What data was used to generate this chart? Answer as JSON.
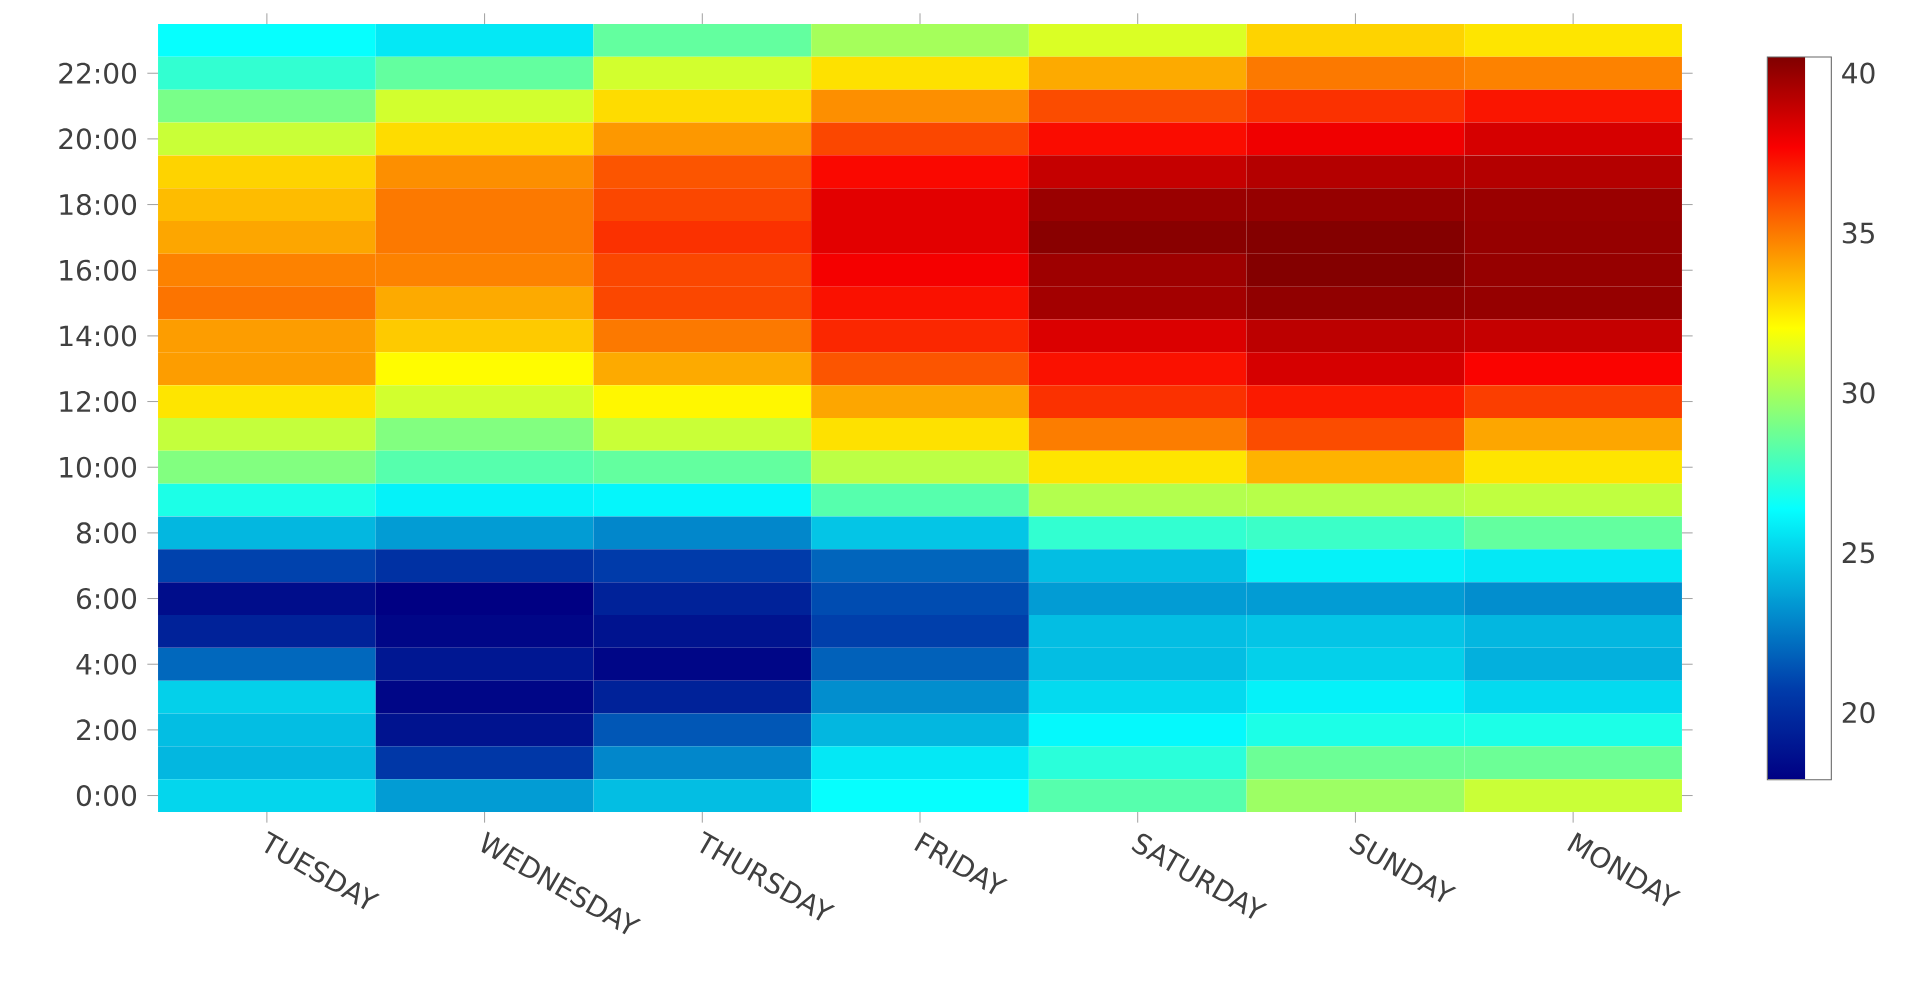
{
  "chart_data": {
    "type": "heatmap",
    "categories": [
      "TUESDAY",
      "WEDNESDAY",
      "THURSDAY",
      "FRIDAY",
      "SATURDAY",
      "SUNDAY",
      "MONDAY"
    ],
    "y_categories": [
      null,
      "22:00",
      null,
      "20:00",
      null,
      "18:00",
      null,
      "16:00",
      null,
      "14:00",
      null,
      "12:00",
      null,
      "10:00",
      null,
      "8:00",
      null,
      "6:00",
      null,
      "4:00",
      null,
      "2:00",
      null,
      "0:00"
    ],
    "cells": [
      [
        26.4,
        25.7,
        28.5,
        30,
        31.2,
        33,
        32.6
      ],
      [
        27.4,
        28.5,
        31,
        32.7,
        33.9,
        35,
        34.8
      ],
      [
        29,
        31,
        32.8,
        34.5,
        36,
        36.6,
        37.2
      ],
      [
        30.8,
        32.8,
        34.3,
        36.1,
        37.4,
        37.9,
        38.5
      ],
      [
        33,
        34.5,
        35.8,
        37.5,
        38.9,
        39.3,
        39.3
      ],
      [
        33.5,
        35,
        36.1,
        38.2,
        39.9,
        40,
        39.9
      ],
      [
        34,
        35,
        36.6,
        38.2,
        40.3,
        40.4,
        40
      ],
      [
        34.8,
        34.8,
        36.1,
        37.8,
        39.8,
        40.4,
        40
      ],
      [
        35.1,
        33.9,
        36.1,
        37.3,
        39.7,
        40.1,
        40
      ],
      [
        34.2,
        33.2,
        35,
        36.8,
        38.4,
        39.1,
        38.9
      ],
      [
        34.2,
        32.1,
        33.9,
        35.8,
        37.3,
        38.5,
        37.6
      ],
      [
        32.6,
        31,
        32.2,
        34,
        36.6,
        37.1,
        36.3
      ],
      [
        30.7,
        29.2,
        30.8,
        32.7,
        34.9,
        36,
        34
      ],
      [
        29.2,
        28.2,
        28.5,
        30.5,
        32.6,
        33.7,
        32.6
      ],
      [
        26.9,
        26,
        26.1,
        28.2,
        30.3,
        30.4,
        30.6
      ],
      [
        24.3,
        23.5,
        22.9,
        24.7,
        27.4,
        27.6,
        28.5
      ],
      [
        20.9,
        20.2,
        20.7,
        21.9,
        24.5,
        26,
        25.7
      ],
      [
        18.5,
        17.9,
        19.5,
        21.2,
        23.5,
        23.5,
        23.1
      ],
      [
        19.5,
        18.2,
        18.8,
        20.8,
        24.5,
        24.7,
        24.3
      ],
      [
        22,
        19,
        18.2,
        21.8,
        24.5,
        25,
        24.1
      ],
      [
        25,
        18.2,
        19.5,
        23.1,
        25.3,
        26,
        25.3
      ],
      [
        24.5,
        18.8,
        21.5,
        24.3,
        26.2,
        26.9,
        26.9
      ],
      [
        24.3,
        20.5,
        22.9,
        25.7,
        27.2,
        28.7,
        28.7
      ],
      [
        25.2,
        23.5,
        24.5,
        26.4,
        28.2,
        29.8,
        30.8
      ]
    ],
    "clim": [
      17.9,
      40.5
    ],
    "cticks": [
      20,
      25,
      30,
      35,
      40
    ]
  }
}
